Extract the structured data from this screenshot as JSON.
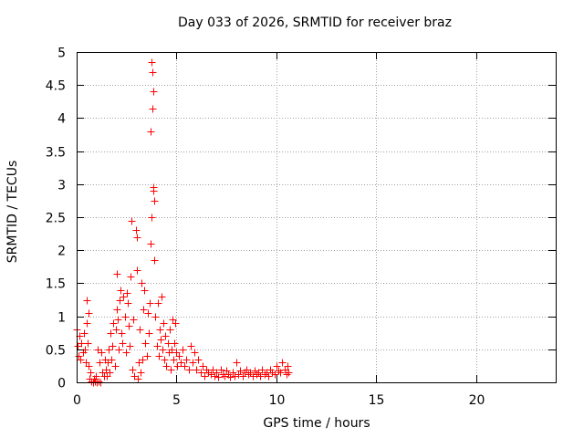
{
  "chart_data": {
    "type": "scatter",
    "title": "Day 033 of 2026, SRMTID for receiver braz",
    "xlabel": "GPS time / hours",
    "ylabel": "SRMTID / TECUs",
    "xlim": [
      0,
      24
    ],
    "ylim": [
      0,
      5
    ],
    "xticks": [
      0,
      5,
      10,
      15,
      20
    ],
    "yticks": [
      0,
      0.5,
      1,
      1.5,
      2,
      2.5,
      3,
      3.5,
      4,
      4.5,
      5
    ],
    "ytick_labels": [
      "0",
      "0.5",
      "1",
      "1.5",
      "2",
      "2.5",
      "3",
      "3.5",
      "4",
      "4.5",
      "5"
    ],
    "grid": true,
    "marker": "+",
    "color": "#ff0000",
    "series": [
      {
        "name": "SRMTID",
        "points": [
          [
            0.0,
            0.8
          ],
          [
            0.05,
            0.55
          ],
          [
            0.1,
            0.4
          ],
          [
            0.15,
            0.7
          ],
          [
            0.2,
            0.35
          ],
          [
            0.25,
            0.6
          ],
          [
            0.3,
            0.45
          ],
          [
            0.35,
            0.75
          ],
          [
            0.4,
            0.5
          ],
          [
            0.45,
            0.3
          ],
          [
            0.5,
            0.9
          ],
          [
            0.5,
            1.25
          ],
          [
            0.55,
            0.6
          ],
          [
            0.6,
            1.05
          ],
          [
            0.6,
            0.25
          ],
          [
            0.65,
            0.05
          ],
          [
            0.7,
            0.15
          ],
          [
            0.75,
            0.02
          ],
          [
            0.8,
            0.0
          ],
          [
            0.85,
            0.05
          ],
          [
            0.9,
            0.01
          ],
          [
            0.95,
            0.1
          ],
          [
            1.0,
            0.0
          ],
          [
            1.05,
            0.5
          ],
          [
            1.1,
            0.02
          ],
          [
            1.15,
            0.3
          ],
          [
            1.2,
            0.0
          ],
          [
            1.25,
            0.45
          ],
          [
            1.3,
            0.15
          ],
          [
            1.35,
            0.1
          ],
          [
            1.4,
            0.35
          ],
          [
            1.45,
            0.2
          ],
          [
            1.5,
            0.1
          ],
          [
            1.55,
            0.3
          ],
          [
            1.6,
            0.5
          ],
          [
            1.65,
            0.15
          ],
          [
            1.7,
            0.75
          ],
          [
            1.75,
            0.35
          ],
          [
            1.8,
            0.55
          ],
          [
            1.85,
            0.9
          ],
          [
            1.9,
            0.25
          ],
          [
            1.95,
            0.8
          ],
          [
            2.0,
            1.1
          ],
          [
            2.0,
            1.65
          ],
          [
            2.05,
            0.95
          ],
          [
            2.1,
            0.5
          ],
          [
            2.15,
            1.25
          ],
          [
            2.2,
            1.4
          ],
          [
            2.25,
            0.75
          ],
          [
            2.3,
            0.6
          ],
          [
            2.35,
            1.3
          ],
          [
            2.4,
            1.0
          ],
          [
            2.45,
            0.45
          ],
          [
            2.5,
            1.35
          ],
          [
            2.55,
            1.2
          ],
          [
            2.6,
            0.85
          ],
          [
            2.65,
            0.55
          ],
          [
            2.7,
            1.6
          ],
          [
            2.75,
            2.45
          ],
          [
            2.8,
            0.2
          ],
          [
            2.85,
            0.95
          ],
          [
            2.9,
            0.1
          ],
          [
            2.95,
            2.3
          ],
          [
            3.0,
            2.2
          ],
          [
            3.0,
            1.7
          ],
          [
            3.05,
            0.05
          ],
          [
            3.1,
            0.3
          ],
          [
            3.15,
            0.8
          ],
          [
            3.2,
            0.15
          ],
          [
            3.25,
            1.5
          ],
          [
            3.3,
            0.35
          ],
          [
            3.35,
            1.1
          ],
          [
            3.4,
            1.4
          ],
          [
            3.45,
            0.6
          ],
          [
            3.5,
            0.4
          ],
          [
            3.55,
            1.05
          ],
          [
            3.6,
            0.75
          ],
          [
            3.65,
            1.2
          ],
          [
            3.7,
            2.1
          ],
          [
            3.72,
            3.8
          ],
          [
            3.74,
            2.5
          ],
          [
            3.76,
            4.85
          ],
          [
            3.78,
            4.7
          ],
          [
            3.8,
            4.15
          ],
          [
            3.82,
            2.9
          ],
          [
            3.84,
            4.4
          ],
          [
            3.86,
            2.95
          ],
          [
            3.88,
            2.75
          ],
          [
            3.9,
            1.85
          ],
          [
            3.95,
            1.0
          ],
          [
            4.0,
            0.55
          ],
          [
            4.05,
            1.2
          ],
          [
            4.1,
            0.4
          ],
          [
            4.15,
            0.8
          ],
          [
            4.2,
            0.65
          ],
          [
            4.25,
            1.3
          ],
          [
            4.3,
            0.5
          ],
          [
            4.35,
            0.9
          ],
          [
            4.4,
            0.35
          ],
          [
            4.45,
            0.7
          ],
          [
            4.5,
            0.25
          ],
          [
            4.55,
            0.6
          ],
          [
            4.6,
            0.45
          ],
          [
            4.65,
            0.8
          ],
          [
            4.7,
            0.2
          ],
          [
            4.75,
            0.5
          ],
          [
            4.8,
            0.95
          ],
          [
            4.85,
            0.35
          ],
          [
            4.9,
            0.6
          ],
          [
            4.95,
            0.9
          ],
          [
            5.0,
            0.45
          ],
          [
            5.05,
            0.25
          ],
          [
            5.1,
            0.4
          ],
          [
            5.2,
            0.3
          ],
          [
            5.3,
            0.5
          ],
          [
            5.4,
            0.25
          ],
          [
            5.5,
            0.35
          ],
          [
            5.6,
            0.2
          ],
          [
            5.7,
            0.55
          ],
          [
            5.8,
            0.3
          ],
          [
            5.9,
            0.45
          ],
          [
            6.0,
            0.2
          ],
          [
            6.1,
            0.35
          ],
          [
            6.2,
            0.15
          ],
          [
            6.3,
            0.25
          ],
          [
            6.4,
            0.1
          ],
          [
            6.5,
            0.2
          ],
          [
            6.6,
            0.15
          ],
          [
            6.7,
            0.12
          ],
          [
            6.8,
            0.2
          ],
          [
            6.9,
            0.1
          ],
          [
            7.0,
            0.15
          ],
          [
            7.1,
            0.08
          ],
          [
            7.2,
            0.2
          ],
          [
            7.3,
            0.12
          ],
          [
            7.4,
            0.1
          ],
          [
            7.5,
            0.18
          ],
          [
            7.6,
            0.12
          ],
          [
            7.7,
            0.08
          ],
          [
            7.8,
            0.15
          ],
          [
            7.9,
            0.1
          ],
          [
            8.0,
            0.3
          ],
          [
            8.1,
            0.12
          ],
          [
            8.2,
            0.18
          ],
          [
            8.3,
            0.1
          ],
          [
            8.4,
            0.15
          ],
          [
            8.5,
            0.2
          ],
          [
            8.6,
            0.12
          ],
          [
            8.7,
            0.15
          ],
          [
            8.8,
            0.1
          ],
          [
            8.9,
            0.18
          ],
          [
            9.0,
            0.12
          ],
          [
            9.1,
            0.15
          ],
          [
            9.2,
            0.1
          ],
          [
            9.3,
            0.2
          ],
          [
            9.4,
            0.12
          ],
          [
            9.5,
            0.15
          ],
          [
            9.6,
            0.1
          ],
          [
            9.7,
            0.2
          ],
          [
            9.8,
            0.15
          ],
          [
            9.9,
            0.12
          ],
          [
            10.0,
            0.25
          ],
          [
            10.1,
            0.18
          ],
          [
            10.2,
            0.15
          ],
          [
            10.3,
            0.3
          ],
          [
            10.4,
            0.2
          ],
          [
            10.5,
            0.12
          ],
          [
            10.55,
            0.25
          ],
          [
            10.6,
            0.15
          ]
        ]
      }
    ]
  }
}
